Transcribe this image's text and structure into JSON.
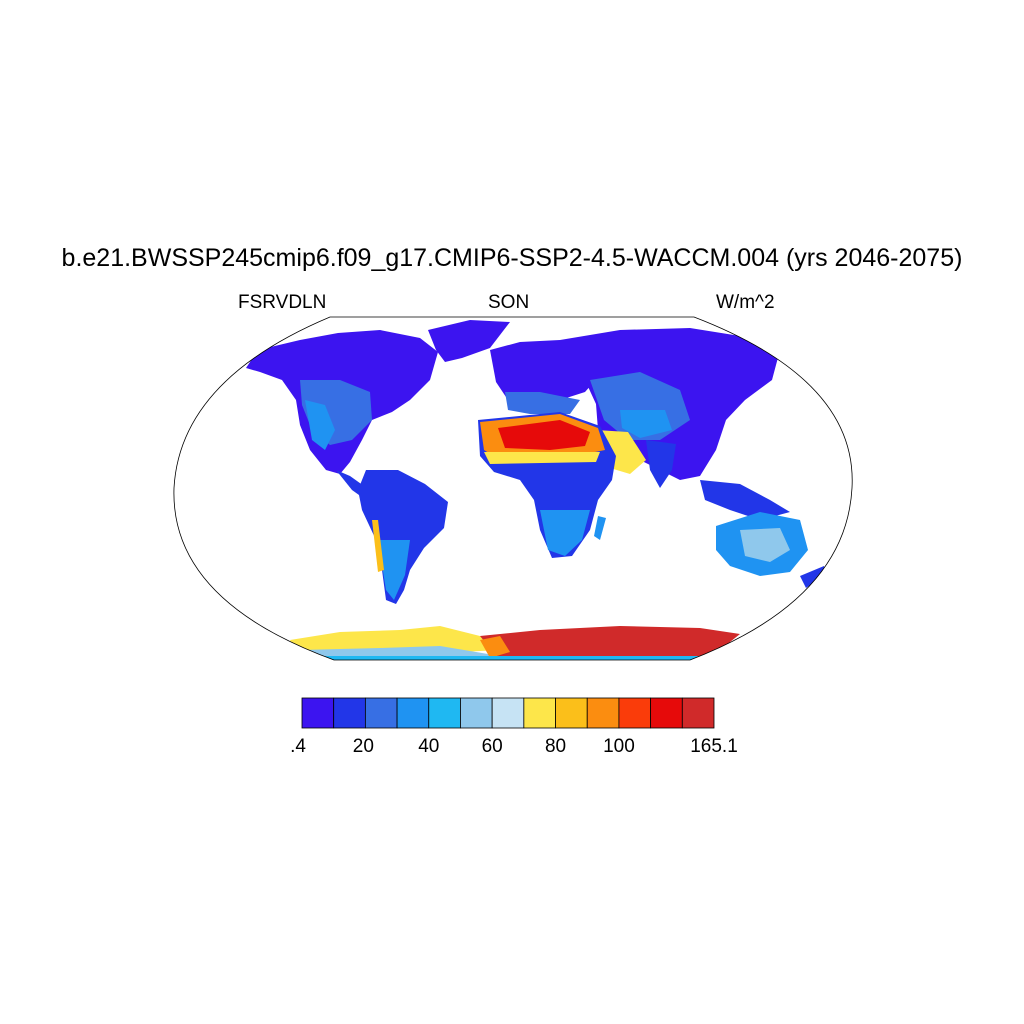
{
  "title": "b.e21.BWSSP245cmip6.f09_g17.CMIP6-SSP2-4.5-WACCM.004 (yrs 2046-2075)",
  "left_string": "FSRVDLN",
  "center_string": "SON",
  "right_string": "W/m^2",
  "colorbar": {
    "colors": [
      "#3c14f0",
      "#2236e8",
      "#376fe4",
      "#1f93f2",
      "#1fb8f2",
      "#8fc8ec",
      "#c6e3f4",
      "#fde64a",
      "#fbbf1a",
      "#fb8d10",
      "#fa3c0a",
      "#e60a0a",
      "#d02a2a"
    ],
    "labels": [
      ".4",
      "20",
      "40",
      "60",
      "80",
      "100",
      "165.1"
    ]
  },
  "map_colors": {
    "ocean": "#ffffff",
    "low": "#3c14f0",
    "mid": "#2236e8",
    "light": "#376fe4",
    "sky": "#1f93f2",
    "pale": "#8fc8ec",
    "yellow": "#fde64a",
    "orange": "#fb8d10",
    "red": "#d02a2a"
  }
}
